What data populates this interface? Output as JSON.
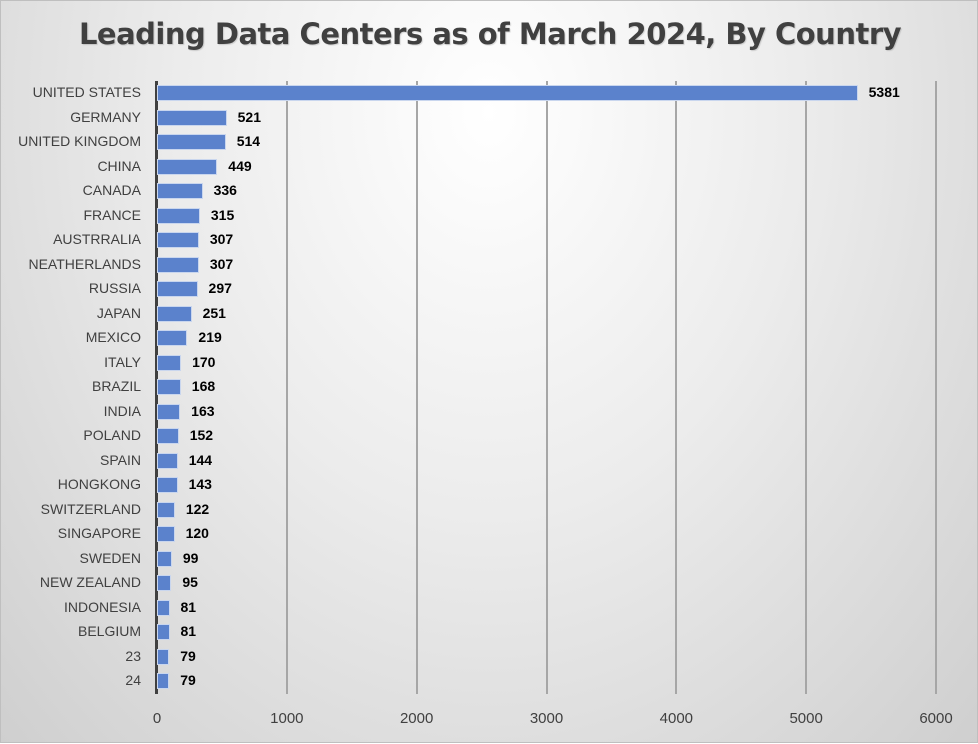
{
  "chart_data": {
    "type": "bar",
    "orientation": "horizontal",
    "title": "Leading Data Centers as of March 2024, By Country",
    "xlabel": "",
    "ylabel": "",
    "xlim": [
      0,
      6000
    ],
    "x_ticks": [
      "0",
      "1000",
      "2000",
      "3000",
      "4000",
      "5000",
      "6000"
    ],
    "grid": true,
    "legend": null,
    "data_labels": true,
    "bar_color": "#5b82cc",
    "categories": [
      "UNITED STATES",
      "GERMANY",
      "UNITED KINGDOM",
      "CHINA",
      "CANADA",
      "FRANCE",
      "AUSTRRALIA",
      "NEATHERLANDS",
      "RUSSIA",
      "JAPAN",
      "MEXICO",
      "ITALY",
      "BRAZIL",
      "INDIA",
      "POLAND",
      "SPAIN",
      "HONGKONG",
      "SWITZERLAND",
      "SINGAPORE",
      "SWEDEN",
      "NEW ZEALAND",
      "INDONESIA",
      "BELGIUM",
      "23",
      "24"
    ],
    "values": [
      5381,
      521,
      514,
      449,
      336,
      315,
      307,
      307,
      297,
      251,
      219,
      170,
      168,
      163,
      152,
      144,
      143,
      122,
      120,
      99,
      95,
      81,
      81,
      79,
      79
    ]
  }
}
